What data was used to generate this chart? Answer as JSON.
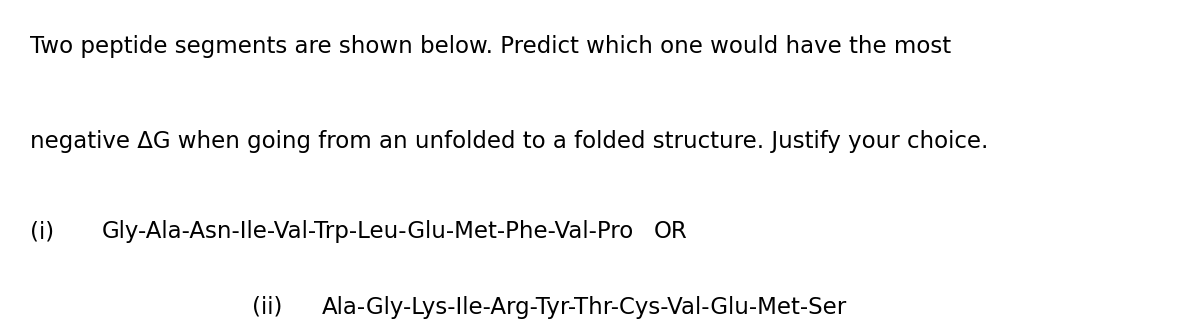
{
  "background_color": "#ffffff",
  "line1": "Two peptide segments are shown below. Predict which one would have the most",
  "line2": "negative ΔG when going from an unfolded to a folded structure. Justify your choice.",
  "line3_label": "(i)",
  "line3_peptide": "Gly-Ala-Asn-Ile-Val-Trp-Leu-Glu-Met-Phe-Val-Pro",
  "line3_or": "OR",
  "line4_label": "(ii)",
  "line4_peptide": "Ala-Gly-Lys-Ile-Arg-Tyr-Thr-Cys-Val-Glu-Met-Ser",
  "font_family": "DejaVu Sans",
  "body_fontsize": 16.5,
  "text_color": "#000000",
  "fig_width": 12.0,
  "fig_height": 3.34
}
